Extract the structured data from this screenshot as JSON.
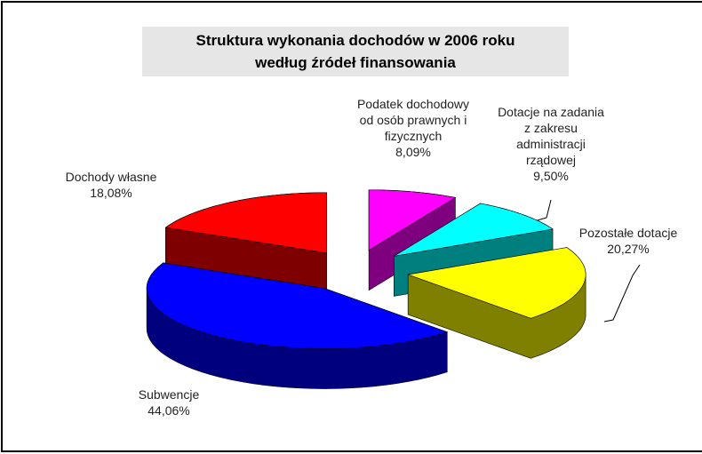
{
  "chart_data": {
    "type": "pie3d",
    "title": [
      "Struktura  wykonania dochodów w 2006 roku",
      "według źródeł finansowania"
    ],
    "categories": [
      "Dochody własne",
      "Subwencje",
      "Pozostałe dotacje",
      "Dotacje na zadania z zakresu administracji rządowej",
      "Podatek dochodowy od osób prawnych i fizycznych"
    ],
    "values": [
      18.08,
      44.06,
      20.27,
      9.5,
      8.09
    ],
    "value_labels": [
      "18,08%",
      "44,06%",
      "20,27%",
      "9,50%",
      "8,09%"
    ],
    "colors": [
      "#ff0000",
      "#0000ff",
      "#ffff00",
      "#00ffff",
      "#ff00ff"
    ]
  }
}
